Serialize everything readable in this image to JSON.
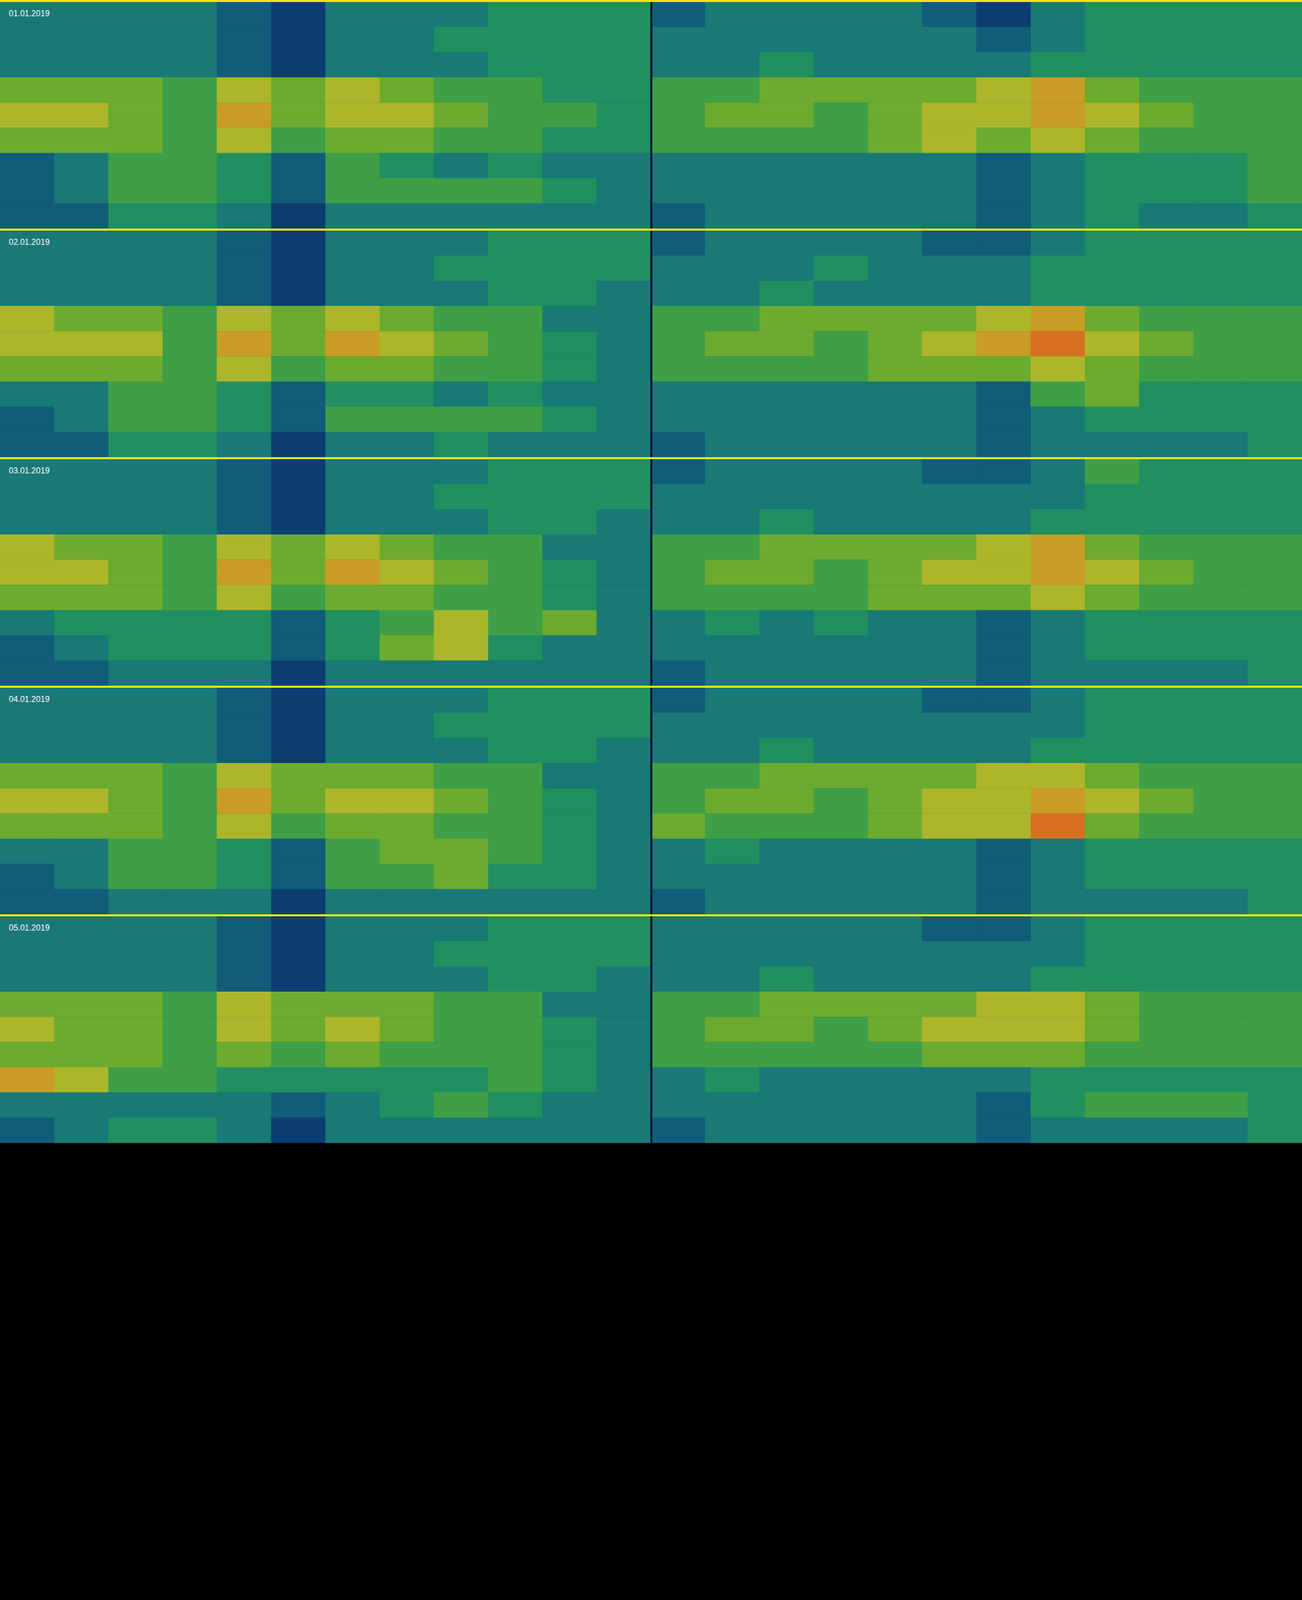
{
  "chart_data": [
    {
      "type": "heatmap",
      "title": "01.01.2019",
      "tick_labels": false,
      "value_range": [
        0,
        10
      ],
      "cells": [
        [
          3,
          3,
          3,
          3,
          2,
          1,
          3,
          3,
          3,
          4,
          4,
          4,
          2,
          3,
          3,
          3,
          3,
          2,
          1,
          3,
          4,
          4,
          4,
          4
        ],
        [
          3,
          3,
          3,
          3,
          2,
          1,
          3,
          3,
          4,
          4,
          4,
          4,
          3,
          3,
          3,
          3,
          3,
          3,
          2,
          3,
          4,
          4,
          4,
          4
        ],
        [
          3,
          3,
          3,
          3,
          2,
          1,
          3,
          3,
          3,
          4,
          4,
          4,
          3,
          3,
          4,
          3,
          3,
          3,
          3,
          4,
          4,
          4,
          4,
          4
        ],
        [
          6,
          6,
          6,
          5,
          7,
          6,
          7,
          6,
          5,
          5,
          4,
          4,
          5,
          5,
          6,
          6,
          6,
          6,
          7,
          8,
          6,
          5,
          5,
          5
        ],
        [
          7,
          7,
          6,
          5,
          8,
          6,
          7,
          7,
          6,
          5,
          5,
          4,
          5,
          6,
          6,
          5,
          6,
          7,
          7,
          8,
          7,
          6,
          5,
          5
        ],
        [
          6,
          6,
          6,
          5,
          7,
          5,
          6,
          6,
          5,
          5,
          4,
          4,
          5,
          5,
          5,
          5,
          6,
          7,
          6,
          7,
          6,
          5,
          5,
          5
        ],
        [
          2,
          3,
          5,
          5,
          4,
          2,
          5,
          4,
          3,
          4,
          3,
          3,
          3,
          3,
          3,
          3,
          3,
          3,
          2,
          3,
          4,
          4,
          4,
          5
        ],
        [
          2,
          3,
          5,
          5,
          4,
          2,
          5,
          5,
          5,
          5,
          4,
          3,
          3,
          3,
          3,
          3,
          3,
          3,
          2,
          3,
          4,
          4,
          4,
          5
        ],
        [
          2,
          2,
          4,
          4,
          3,
          1,
          3,
          3,
          3,
          3,
          3,
          3,
          2,
          3,
          3,
          3,
          3,
          3,
          2,
          3,
          4,
          3,
          3,
          4
        ]
      ]
    },
    {
      "type": "heatmap",
      "title": "02.01.2019",
      "tick_labels": false,
      "value_range": [
        0,
        10
      ],
      "cells": [
        [
          3,
          3,
          3,
          3,
          2,
          1,
          3,
          3,
          3,
          4,
          4,
          4,
          2,
          3,
          3,
          3,
          3,
          2,
          2,
          3,
          4,
          4,
          4,
          4
        ],
        [
          3,
          3,
          3,
          3,
          2,
          1,
          3,
          3,
          4,
          4,
          4,
          4,
          3,
          3,
          3,
          4,
          3,
          3,
          3,
          4,
          4,
          4,
          4,
          4
        ],
        [
          3,
          3,
          3,
          3,
          2,
          1,
          3,
          3,
          3,
          4,
          4,
          3,
          3,
          3,
          4,
          3,
          3,
          3,
          3,
          4,
          4,
          4,
          4,
          4
        ],
        [
          7,
          6,
          6,
          5,
          7,
          6,
          7,
          6,
          5,
          5,
          3,
          3,
          5,
          5,
          6,
          6,
          6,
          6,
          7,
          8,
          6,
          5,
          5,
          5
        ],
        [
          7,
          7,
          7,
          5,
          8,
          6,
          8,
          7,
          6,
          5,
          4,
          3,
          5,
          6,
          6,
          5,
          6,
          7,
          8,
          9,
          7,
          6,
          5,
          5
        ],
        [
          6,
          6,
          6,
          5,
          7,
          5,
          6,
          6,
          5,
          5,
          4,
          3,
          5,
          5,
          5,
          5,
          6,
          6,
          6,
          7,
          6,
          5,
          5,
          5
        ],
        [
          3,
          3,
          5,
          5,
          4,
          2,
          4,
          4,
          3,
          4,
          3,
          3,
          3,
          3,
          3,
          3,
          3,
          3,
          2,
          5,
          6,
          4,
          4,
          4
        ],
        [
          2,
          3,
          5,
          5,
          4,
          2,
          5,
          5,
          5,
          5,
          4,
          3,
          3,
          3,
          3,
          3,
          3,
          3,
          2,
          3,
          4,
          4,
          4,
          4
        ],
        [
          2,
          2,
          4,
          4,
          3,
          1,
          3,
          3,
          4,
          3,
          3,
          3,
          2,
          3,
          3,
          3,
          3,
          3,
          2,
          3,
          3,
          3,
          3,
          4
        ]
      ]
    },
    {
      "type": "heatmap",
      "title": "03.01.2019",
      "tick_labels": false,
      "value_range": [
        0,
        10
      ],
      "cells": [
        [
          3,
          3,
          3,
          3,
          2,
          1,
          3,
          3,
          3,
          4,
          4,
          4,
          2,
          3,
          3,
          3,
          3,
          2,
          2,
          3,
          5,
          4,
          4,
          4
        ],
        [
          3,
          3,
          3,
          3,
          2,
          1,
          3,
          3,
          4,
          4,
          4,
          4,
          3,
          3,
          3,
          3,
          3,
          3,
          3,
          3,
          4,
          4,
          4,
          4
        ],
        [
          3,
          3,
          3,
          3,
          2,
          1,
          3,
          3,
          3,
          4,
          4,
          3,
          3,
          3,
          4,
          3,
          3,
          3,
          3,
          4,
          4,
          4,
          4,
          4
        ],
        [
          7,
          6,
          6,
          5,
          7,
          6,
          7,
          6,
          5,
          5,
          3,
          3,
          5,
          5,
          6,
          6,
          6,
          6,
          7,
          8,
          6,
          5,
          5,
          5
        ],
        [
          7,
          7,
          6,
          5,
          8,
          6,
          8,
          7,
          6,
          5,
          4,
          3,
          5,
          6,
          6,
          5,
          6,
          7,
          7,
          8,
          7,
          6,
          5,
          5
        ],
        [
          6,
          6,
          6,
          5,
          7,
          5,
          6,
          6,
          5,
          5,
          4,
          3,
          5,
          5,
          5,
          5,
          6,
          6,
          6,
          7,
          6,
          5,
          5,
          5
        ],
        [
          3,
          4,
          4,
          4,
          4,
          2,
          4,
          5,
          7,
          5,
          6,
          3,
          3,
          4,
          3,
          4,
          3,
          3,
          2,
          3,
          4,
          4,
          4,
          4
        ],
        [
          2,
          3,
          4,
          4,
          4,
          2,
          4,
          6,
          7,
          4,
          3,
          3,
          3,
          3,
          3,
          3,
          3,
          3,
          2,
          3,
          4,
          4,
          4,
          4
        ],
        [
          2,
          2,
          3,
          3,
          3,
          1,
          3,
          3,
          3,
          3,
          3,
          3,
          2,
          3,
          3,
          3,
          3,
          3,
          2,
          3,
          3,
          3,
          3,
          4
        ]
      ]
    },
    {
      "type": "heatmap",
      "title": "04.01.2019",
      "tick_labels": false,
      "value_range": [
        0,
        10
      ],
      "cells": [
        [
          3,
          3,
          3,
          3,
          2,
          1,
          3,
          3,
          3,
          4,
          4,
          4,
          2,
          3,
          3,
          3,
          3,
          2,
          2,
          3,
          4,
          4,
          4,
          4
        ],
        [
          3,
          3,
          3,
          3,
          2,
          1,
          3,
          3,
          4,
          4,
          4,
          4,
          3,
          3,
          3,
          3,
          3,
          3,
          3,
          3,
          4,
          4,
          4,
          4
        ],
        [
          3,
          3,
          3,
          3,
          2,
          1,
          3,
          3,
          3,
          4,
          4,
          3,
          3,
          3,
          4,
          3,
          3,
          3,
          3,
          4,
          4,
          4,
          4,
          4
        ],
        [
          6,
          6,
          6,
          5,
          7,
          6,
          6,
          6,
          5,
          5,
          3,
          3,
          5,
          5,
          6,
          6,
          6,
          6,
          7,
          7,
          6,
          5,
          5,
          5
        ],
        [
          7,
          7,
          6,
          5,
          8,
          6,
          7,
          7,
          6,
          5,
          4,
          3,
          5,
          6,
          6,
          5,
          6,
          7,
          7,
          8,
          7,
          6,
          5,
          5
        ],
        [
          6,
          6,
          6,
          5,
          7,
          5,
          6,
          6,
          5,
          5,
          4,
          3,
          6,
          5,
          5,
          5,
          6,
          7,
          7,
          9,
          6,
          5,
          5,
          5
        ],
        [
          3,
          3,
          5,
          5,
          4,
          2,
          5,
          6,
          6,
          5,
          4,
          3,
          3,
          4,
          3,
          3,
          3,
          3,
          2,
          3,
          4,
          4,
          4,
          4
        ],
        [
          2,
          3,
          5,
          5,
          4,
          2,
          5,
          5,
          6,
          4,
          4,
          3,
          3,
          3,
          3,
          3,
          3,
          3,
          2,
          3,
          4,
          4,
          4,
          4
        ],
        [
          2,
          2,
          3,
          3,
          3,
          1,
          3,
          3,
          3,
          3,
          3,
          3,
          2,
          3,
          3,
          3,
          3,
          3,
          2,
          3,
          3,
          3,
          3,
          4
        ]
      ]
    },
    {
      "type": "heatmap",
      "title": "05.01.2019",
      "tick_labels": false,
      "value_range": [
        0,
        10
      ],
      "cells": [
        [
          3,
          3,
          3,
          3,
          2,
          1,
          3,
          3,
          3,
          4,
          4,
          4,
          3,
          3,
          3,
          3,
          3,
          2,
          2,
          3,
          4,
          4,
          4,
          4
        ],
        [
          3,
          3,
          3,
          3,
          2,
          1,
          3,
          3,
          4,
          4,
          4,
          4,
          3,
          3,
          3,
          3,
          3,
          3,
          3,
          3,
          4,
          4,
          4,
          4
        ],
        [
          3,
          3,
          3,
          3,
          2,
          1,
          3,
          3,
          3,
          4,
          4,
          3,
          3,
          3,
          4,
          3,
          3,
          3,
          3,
          4,
          4,
          4,
          4,
          4
        ],
        [
          6,
          6,
          6,
          5,
          7,
          6,
          6,
          6,
          5,
          5,
          3,
          3,
          5,
          5,
          6,
          6,
          6,
          6,
          7,
          7,
          6,
          5,
          5,
          5
        ],
        [
          7,
          6,
          6,
          5,
          7,
          6,
          7,
          6,
          5,
          5,
          4,
          3,
          5,
          6,
          6,
          5,
          6,
          7,
          7,
          7,
          6,
          5,
          5,
          5
        ],
        [
          6,
          6,
          6,
          5,
          6,
          5,
          6,
          5,
          5,
          5,
          4,
          3,
          5,
          5,
          5,
          5,
          5,
          6,
          6,
          6,
          5,
          5,
          5,
          5
        ],
        [
          8,
          7,
          5,
          5,
          4,
          4,
          4,
          4,
          4,
          5,
          4,
          3,
          3,
          4,
          3,
          3,
          3,
          3,
          3,
          4,
          4,
          4,
          4,
          4
        ],
        [
          3,
          3,
          3,
          3,
          3,
          2,
          3,
          4,
          5,
          4,
          3,
          3,
          3,
          3,
          3,
          3,
          3,
          3,
          2,
          4,
          5,
          5,
          5,
          4
        ],
        [
          2,
          3,
          4,
          4,
          3,
          1,
          3,
          3,
          3,
          3,
          3,
          3,
          2,
          3,
          3,
          3,
          3,
          3,
          2,
          3,
          3,
          3,
          3,
          4
        ]
      ]
    }
  ]
}
